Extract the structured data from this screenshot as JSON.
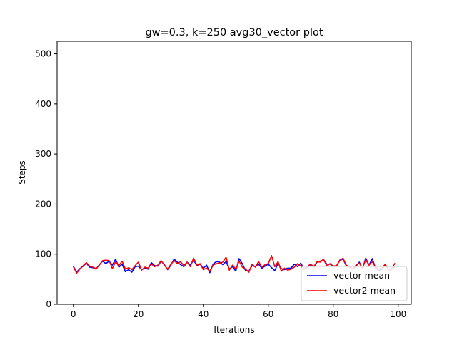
{
  "chart_data": {
    "type": "line",
    "title": "gw=0.3, k=250 avg30_vector plot",
    "xlabel": "Iterations",
    "ylabel": "Steps",
    "xlim": [
      -5,
      104
    ],
    "ylim": [
      0,
      525
    ],
    "xticks": [
      0,
      20,
      40,
      60,
      80,
      100
    ],
    "yticks": [
      0,
      100,
      200,
      300,
      400,
      500
    ],
    "legend_position": "lower right",
    "grid": false,
    "x": [
      0,
      1,
      2,
      3,
      4,
      5,
      6,
      7,
      8,
      9,
      10,
      11,
      12,
      13,
      14,
      15,
      16,
      17,
      18,
      19,
      20,
      21,
      22,
      23,
      24,
      25,
      26,
      27,
      28,
      29,
      30,
      31,
      32,
      33,
      34,
      35,
      36,
      37,
      38,
      39,
      40,
      41,
      42,
      43,
      44,
      45,
      46,
      47,
      48,
      49,
      50,
      51,
      52,
      53,
      54,
      55,
      56,
      57,
      58,
      59,
      60,
      61,
      62,
      63,
      64,
      65,
      66,
      67,
      68,
      69,
      70,
      71,
      72,
      73,
      74,
      75,
      76,
      77,
      78,
      79,
      80,
      81,
      82,
      83,
      84,
      85,
      86,
      87,
      88,
      89,
      90,
      91,
      92,
      93,
      94,
      95,
      96,
      97,
      98,
      99
    ],
    "series": [
      {
        "name": "vector mean",
        "color": "#0000ff",
        "values": [
          76,
          64,
          71,
          76,
          82,
          74,
          73,
          70,
          79,
          86,
          81,
          86,
          78,
          90,
          74,
          80,
          65,
          69,
          64,
          75,
          76,
          69,
          72,
          70,
          83,
          77,
          76,
          86,
          79,
          69,
          78,
          90,
          84,
          79,
          75,
          84,
          78,
          88,
          77,
          80,
          72,
          78,
          63,
          80,
          85,
          84,
          79,
          85,
          70,
          75,
          66,
          91,
          81,
          67,
          66,
          77,
          75,
          80,
          72,
          76,
          80,
          73,
          67,
          82,
          71,
          69,
          72,
          72,
          80,
          75,
          82,
          70,
          74,
          79,
          74,
          84,
          86,
          88,
          80,
          80,
          75,
          76,
          88,
          90,
          77,
          75,
          70,
          76,
          84,
          71,
          92,
          78,
          91,
          72,
          67,
          70,
          78,
          70,
          70,
          76
        ]
      },
      {
        "name": "vector2 mean",
        "color": "#ff0000",
        "values": [
          75,
          62,
          70,
          77,
          83,
          76,
          74,
          71,
          78,
          87,
          88,
          87,
          71,
          85,
          77,
          86,
          70,
          73,
          69,
          77,
          84,
          68,
          74,
          72,
          80,
          75,
          78,
          87,
          78,
          70,
          80,
          87,
          81,
          85,
          77,
          84,
          75,
          92,
          78,
          81,
          69,
          72,
          66,
          78,
          81,
          82,
          84,
          94,
          68,
          78,
          70,
          86,
          74,
          70,
          64,
          80,
          74,
          85,
          74,
          79,
          81,
          97,
          75,
          85,
          66,
          72,
          68,
          70,
          74,
          81,
          76,
          71,
          75,
          80,
          75,
          85,
          84,
          90,
          76,
          81,
          76,
          77,
          87,
          92,
          78,
          74,
          70,
          78,
          82,
          72,
          89,
          78,
          85,
          74,
          70,
          72,
          80,
          68,
          71,
          82
        ]
      }
    ]
  }
}
